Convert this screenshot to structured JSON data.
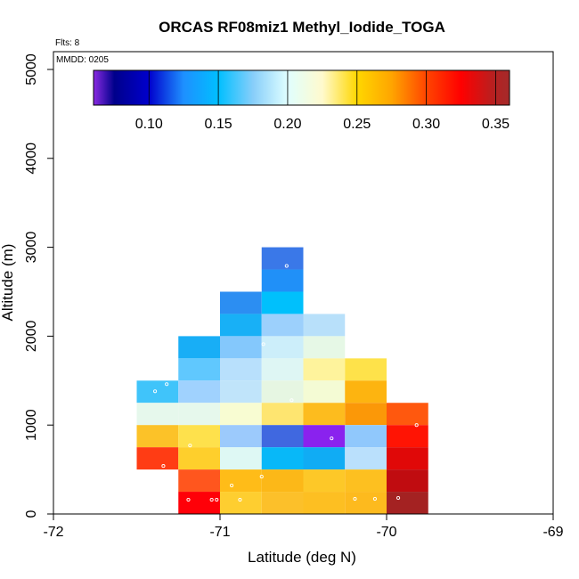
{
  "chart_data": {
    "type": "heatmap",
    "title": "ORCAS RF08miz1 Methyl_Iodide_TOGA",
    "flights_label": "Flts: 8",
    "date_label": "MMDD: 0205",
    "xlabel": "Latitude (deg N)",
    "ylabel": "Altitude (m)",
    "xlim": [
      -72,
      -69
    ],
    "ylim": [
      0,
      5200
    ],
    "xticks": [
      -72,
      -71,
      -70,
      -69
    ],
    "xtick_labels": [
      "-72",
      "-71",
      "-70",
      "-69"
    ],
    "yticks": [
      0,
      1000,
      2000,
      3000,
      4000,
      5000
    ],
    "ytick_labels": [
      "0",
      "1000",
      "2000",
      "3000",
      "4000",
      "5000"
    ],
    "colorbar": {
      "range": [
        0.06,
        0.36
      ],
      "ticks": [
        0.1,
        0.15,
        0.2,
        0.25,
        0.3,
        0.35
      ],
      "tick_labels": [
        "0.10",
        "0.15",
        "0.20",
        "0.25",
        "0.30",
        "0.35"
      ],
      "stops": [
        [
          0.06,
          "#8a2be2"
        ],
        [
          0.075,
          "#00008b"
        ],
        [
          0.1,
          "#0000cd"
        ],
        [
          0.125,
          "#1e90ff"
        ],
        [
          0.15,
          "#00bfff"
        ],
        [
          0.175,
          "#87cefa"
        ],
        [
          0.2,
          "#e0ffff"
        ],
        [
          0.225,
          "#fffacd"
        ],
        [
          0.25,
          "#ffd700"
        ],
        [
          0.275,
          "#ffa500"
        ],
        [
          0.3,
          "#ff4500"
        ],
        [
          0.325,
          "#ff0000"
        ],
        [
          0.35,
          "#b22222"
        ],
        [
          0.36,
          "#a52a2a"
        ]
      ]
    },
    "bin_width_deg": 0.25,
    "bin_height_m": 250,
    "cells": [
      {
        "lat": -71.375,
        "alt": 1375,
        "color": "#40c4fa"
      },
      {
        "lat": -71.375,
        "alt": 1125,
        "color": "#e6f8ec"
      },
      {
        "lat": -71.375,
        "alt": 875,
        "color": "#fcc228"
      },
      {
        "lat": -71.375,
        "alt": 625,
        "color": "#ff3c14"
      },
      {
        "lat": -71.125,
        "alt": 1875,
        "color": "#18aef6"
      },
      {
        "lat": -71.125,
        "alt": 1625,
        "color": "#60c8fe"
      },
      {
        "lat": -71.125,
        "alt": 1375,
        "color": "#a0d2fe"
      },
      {
        "lat": -71.125,
        "alt": 1125,
        "color": "#e6f8ec"
      },
      {
        "lat": -71.125,
        "alt": 875,
        "color": "#fee14c"
      },
      {
        "lat": -71.125,
        "alt": 625,
        "color": "#fecf2c"
      },
      {
        "lat": -71.125,
        "alt": 375,
        "color": "#ff561e"
      },
      {
        "lat": -71.125,
        "alt": 125,
        "color": "#ff0008"
      },
      {
        "lat": -70.875,
        "alt": 2375,
        "color": "#2c8ef2"
      },
      {
        "lat": -70.875,
        "alt": 2125,
        "color": "#18b0f6"
      },
      {
        "lat": -70.875,
        "alt": 1875,
        "color": "#84c8fc"
      },
      {
        "lat": -70.875,
        "alt": 1625,
        "color": "#b8e0fc"
      },
      {
        "lat": -70.875,
        "alt": 1375,
        "color": "#c0e4fa"
      },
      {
        "lat": -70.875,
        "alt": 1125,
        "color": "#f8fcd2"
      },
      {
        "lat": -70.875,
        "alt": 875,
        "color": "#9ccafc"
      },
      {
        "lat": -70.875,
        "alt": 625,
        "color": "#def8f4"
      },
      {
        "lat": -70.875,
        "alt": 375,
        "color": "#ffbc18"
      },
      {
        "lat": -70.875,
        "alt": 125,
        "color": "#fece30"
      },
      {
        "lat": -70.625,
        "alt": 2875,
        "color": "#3a78e8"
      },
      {
        "lat": -70.625,
        "alt": 2625,
        "color": "#2090f8"
      },
      {
        "lat": -70.625,
        "alt": 2375,
        "color": "#00c0fc"
      },
      {
        "lat": -70.625,
        "alt": 2125,
        "color": "#9cd0fc"
      },
      {
        "lat": -70.625,
        "alt": 1875,
        "color": "#cceefa"
      },
      {
        "lat": -70.625,
        "alt": 1625,
        "color": "#def6f4"
      },
      {
        "lat": -70.625,
        "alt": 1375,
        "color": "#e6f6e2"
      },
      {
        "lat": -70.625,
        "alt": 1125,
        "color": "#fee570"
      },
      {
        "lat": -70.625,
        "alt": 875,
        "color": "#4068e0"
      },
      {
        "lat": -70.625,
        "alt": 625,
        "color": "#08b8f8"
      },
      {
        "lat": -70.625,
        "alt": 375,
        "color": "#fcb818"
      },
      {
        "lat": -70.625,
        "alt": 125,
        "color": "#fcc02a"
      },
      {
        "lat": -70.375,
        "alt": 2125,
        "color": "#b8e0fa"
      },
      {
        "lat": -70.375,
        "alt": 1875,
        "color": "#e6f8e6"
      },
      {
        "lat": -70.375,
        "alt": 1625,
        "color": "#fef39c"
      },
      {
        "lat": -70.375,
        "alt": 1375,
        "color": "#f4fbd4"
      },
      {
        "lat": -70.375,
        "alt": 1125,
        "color": "#fdbc1e"
      },
      {
        "lat": -70.375,
        "alt": 875,
        "color": "#8a22ee"
      },
      {
        "lat": -70.375,
        "alt": 625,
        "color": "#10acf4"
      },
      {
        "lat": -70.375,
        "alt": 375,
        "color": "#fdc828"
      },
      {
        "lat": -70.375,
        "alt": 125,
        "color": "#fdbf22"
      },
      {
        "lat": -70.125,
        "alt": 1625,
        "color": "#fee24a"
      },
      {
        "lat": -70.125,
        "alt": 1375,
        "color": "#fdb410"
      },
      {
        "lat": -70.125,
        "alt": 1125,
        "color": "#fb9808"
      },
      {
        "lat": -70.125,
        "alt": 875,
        "color": "#90c8fc"
      },
      {
        "lat": -70.125,
        "alt": 625,
        "color": "#bae0fc"
      },
      {
        "lat": -70.125,
        "alt": 375,
        "color": "#fdc020"
      },
      {
        "lat": -70.125,
        "alt": 125,
        "color": "#fdba1e"
      },
      {
        "lat": -69.875,
        "alt": 1125,
        "color": "#ff580e"
      },
      {
        "lat": -69.875,
        "alt": 875,
        "color": "#ff1404"
      },
      {
        "lat": -69.875,
        "alt": 625,
        "color": "#e00808"
      },
      {
        "lat": -69.875,
        "alt": 375,
        "color": "#c00c10"
      },
      {
        "lat": -69.875,
        "alt": 125,
        "color": "#a42222"
      }
    ],
    "sample_points": [
      {
        "lat": -71.39,
        "alt": 1380
      },
      {
        "lat": -71.32,
        "alt": 1460
      },
      {
        "lat": -71.34,
        "alt": 540
      },
      {
        "lat": -71.18,
        "alt": 770
      },
      {
        "lat": -71.19,
        "alt": 160
      },
      {
        "lat": -71.05,
        "alt": 160
      },
      {
        "lat": -71.02,
        "alt": 160
      },
      {
        "lat": -70.93,
        "alt": 320
      },
      {
        "lat": -70.88,
        "alt": 160
      },
      {
        "lat": -70.75,
        "alt": 420
      },
      {
        "lat": -70.74,
        "alt": 1910
      },
      {
        "lat": -70.6,
        "alt": 2790
      },
      {
        "lat": -70.57,
        "alt": 1280
      },
      {
        "lat": -70.33,
        "alt": 850
      },
      {
        "lat": -70.19,
        "alt": 170
      },
      {
        "lat": -70.07,
        "alt": 170
      },
      {
        "lat": -69.93,
        "alt": 180
      },
      {
        "lat": -69.82,
        "alt": 1000
      }
    ]
  }
}
